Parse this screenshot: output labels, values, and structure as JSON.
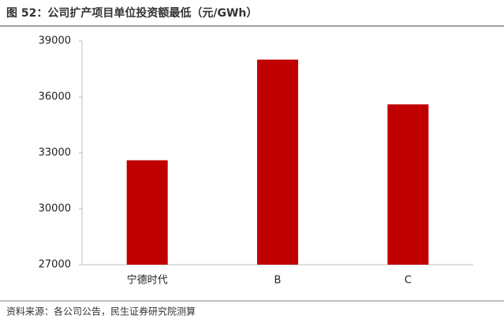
{
  "chart_data": {
    "type": "bar",
    "title": "图 52：公司扩产项目单位投资额最低（元/GWh）",
    "categories": [
      "宁德时代",
      "B",
      "C"
    ],
    "values": [
      32600,
      38000,
      35600
    ],
    "color": "#c00000",
    "ylim": [
      27000,
      39000
    ],
    "yticks": [
      27000,
      30000,
      33000,
      36000,
      39000
    ],
    "grid": false,
    "source": "资料来源：各公司公告，民生证券研究院测算"
  }
}
